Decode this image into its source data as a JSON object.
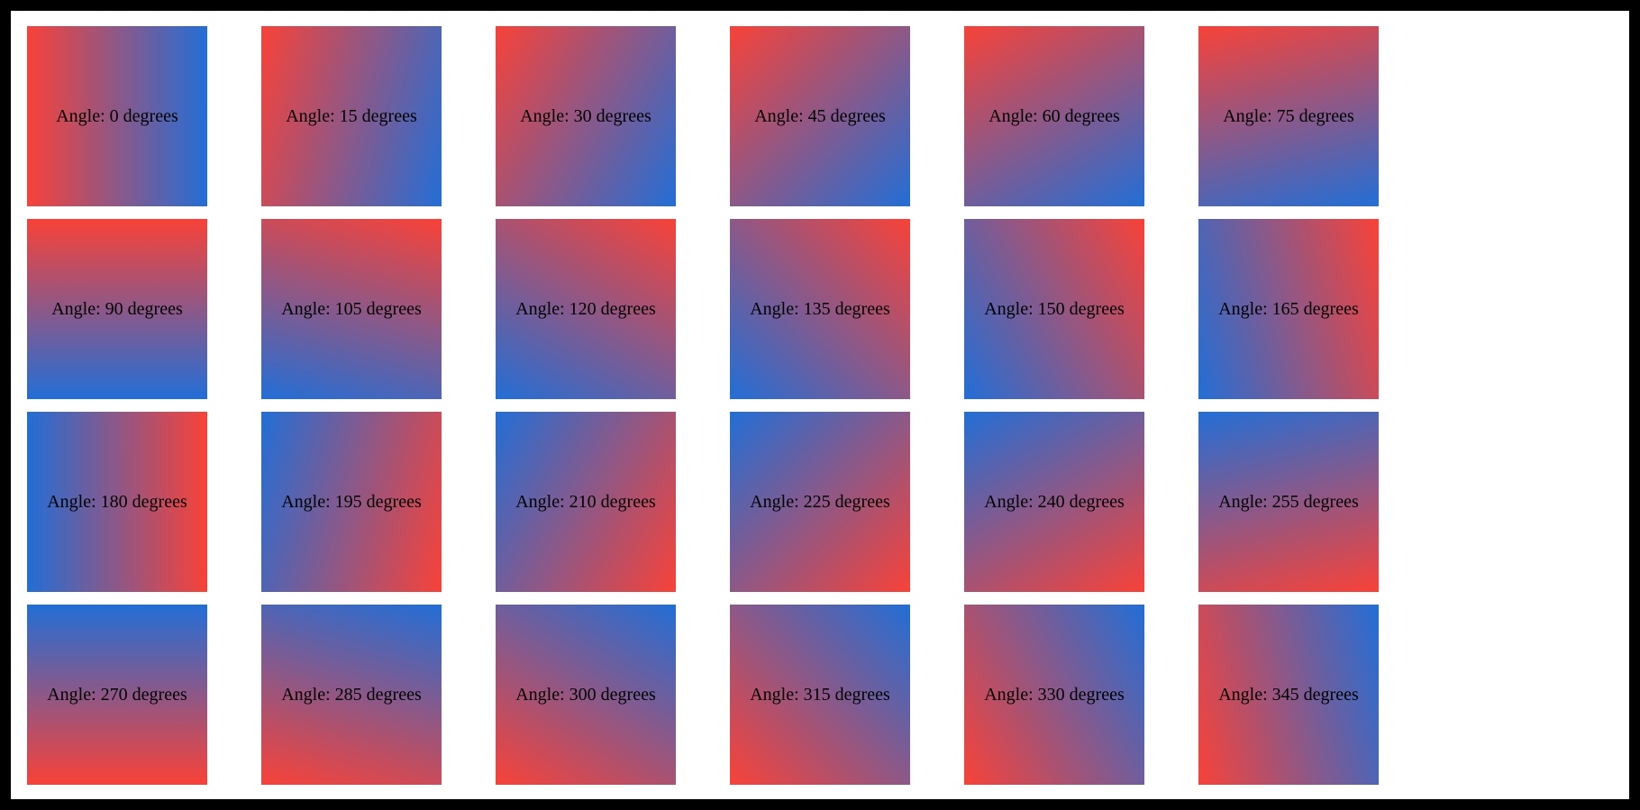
{
  "figure": {
    "description": "Grid of red-to-blue linear gradient swatches at 15 degree increments",
    "columns": 6,
    "rows": 4
  },
  "colors": {
    "gradient_start_red": "#f84238",
    "gradient_end_blue": "#226ed6",
    "label_text": "#000000",
    "frame": "#000000",
    "background": "#ffffff"
  },
  "tiles": [
    {
      "angle": 0,
      "label": "Angle: 0 degrees"
    },
    {
      "angle": 15,
      "label": "Angle: 15 degrees"
    },
    {
      "angle": 30,
      "label": "Angle: 30 degrees"
    },
    {
      "angle": 45,
      "label": "Angle: 45 degrees"
    },
    {
      "angle": 60,
      "label": "Angle: 60 degrees"
    },
    {
      "angle": 75,
      "label": "Angle: 75 degrees"
    },
    {
      "angle": 90,
      "label": "Angle: 90 degrees"
    },
    {
      "angle": 105,
      "label": "Angle: 105 degrees"
    },
    {
      "angle": 120,
      "label": "Angle: 120 degrees"
    },
    {
      "angle": 135,
      "label": "Angle: 135 degrees"
    },
    {
      "angle": 150,
      "label": "Angle: 150 degrees"
    },
    {
      "angle": 165,
      "label": "Angle: 165 degrees"
    },
    {
      "angle": 180,
      "label": "Angle: 180 degrees"
    },
    {
      "angle": 195,
      "label": "Angle: 195 degrees"
    },
    {
      "angle": 210,
      "label": "Angle: 210 degrees"
    },
    {
      "angle": 225,
      "label": "Angle: 225 degrees"
    },
    {
      "angle": 240,
      "label": "Angle: 240 degrees"
    },
    {
      "angle": 255,
      "label": "Angle: 255 degrees"
    },
    {
      "angle": 270,
      "label": "Angle: 270 degrees"
    },
    {
      "angle": 285,
      "label": "Angle: 285 degrees"
    },
    {
      "angle": 300,
      "label": "Angle: 300 degrees"
    },
    {
      "angle": 315,
      "label": "Angle: 315 degrees"
    },
    {
      "angle": 330,
      "label": "Angle: 330 degrees"
    },
    {
      "angle": 345,
      "label": "Angle: 345 degrees"
    }
  ]
}
